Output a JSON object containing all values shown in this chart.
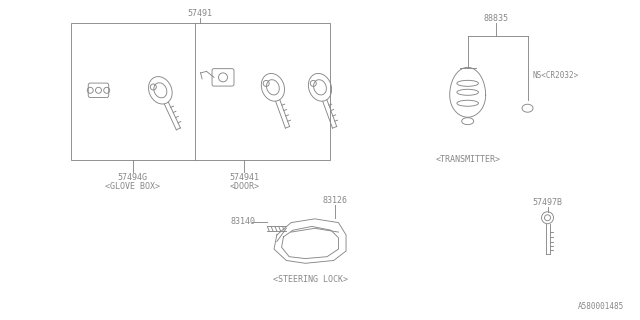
{
  "bg_color": "#ffffff",
  "line_color": "#888888",
  "text_color": "#888888",
  "title_catalog": "A580001485",
  "lw": 0.65,
  "parts": {
    "label_57491": "57491",
    "label_57494G": "57494G",
    "label_57494G_sub": "<GLOVE BOX>",
    "label_574941": "574941",
    "label_574941_sub": "<DOOR>",
    "label_88835": "88835",
    "label_transmitter": "<TRANSMITTER>",
    "label_NS": "NS<CR2032>",
    "label_83140": "83140",
    "label_83126": "83126",
    "label_83126_sub": "<STEERING LOCK>",
    "label_57497B": "57497B"
  }
}
